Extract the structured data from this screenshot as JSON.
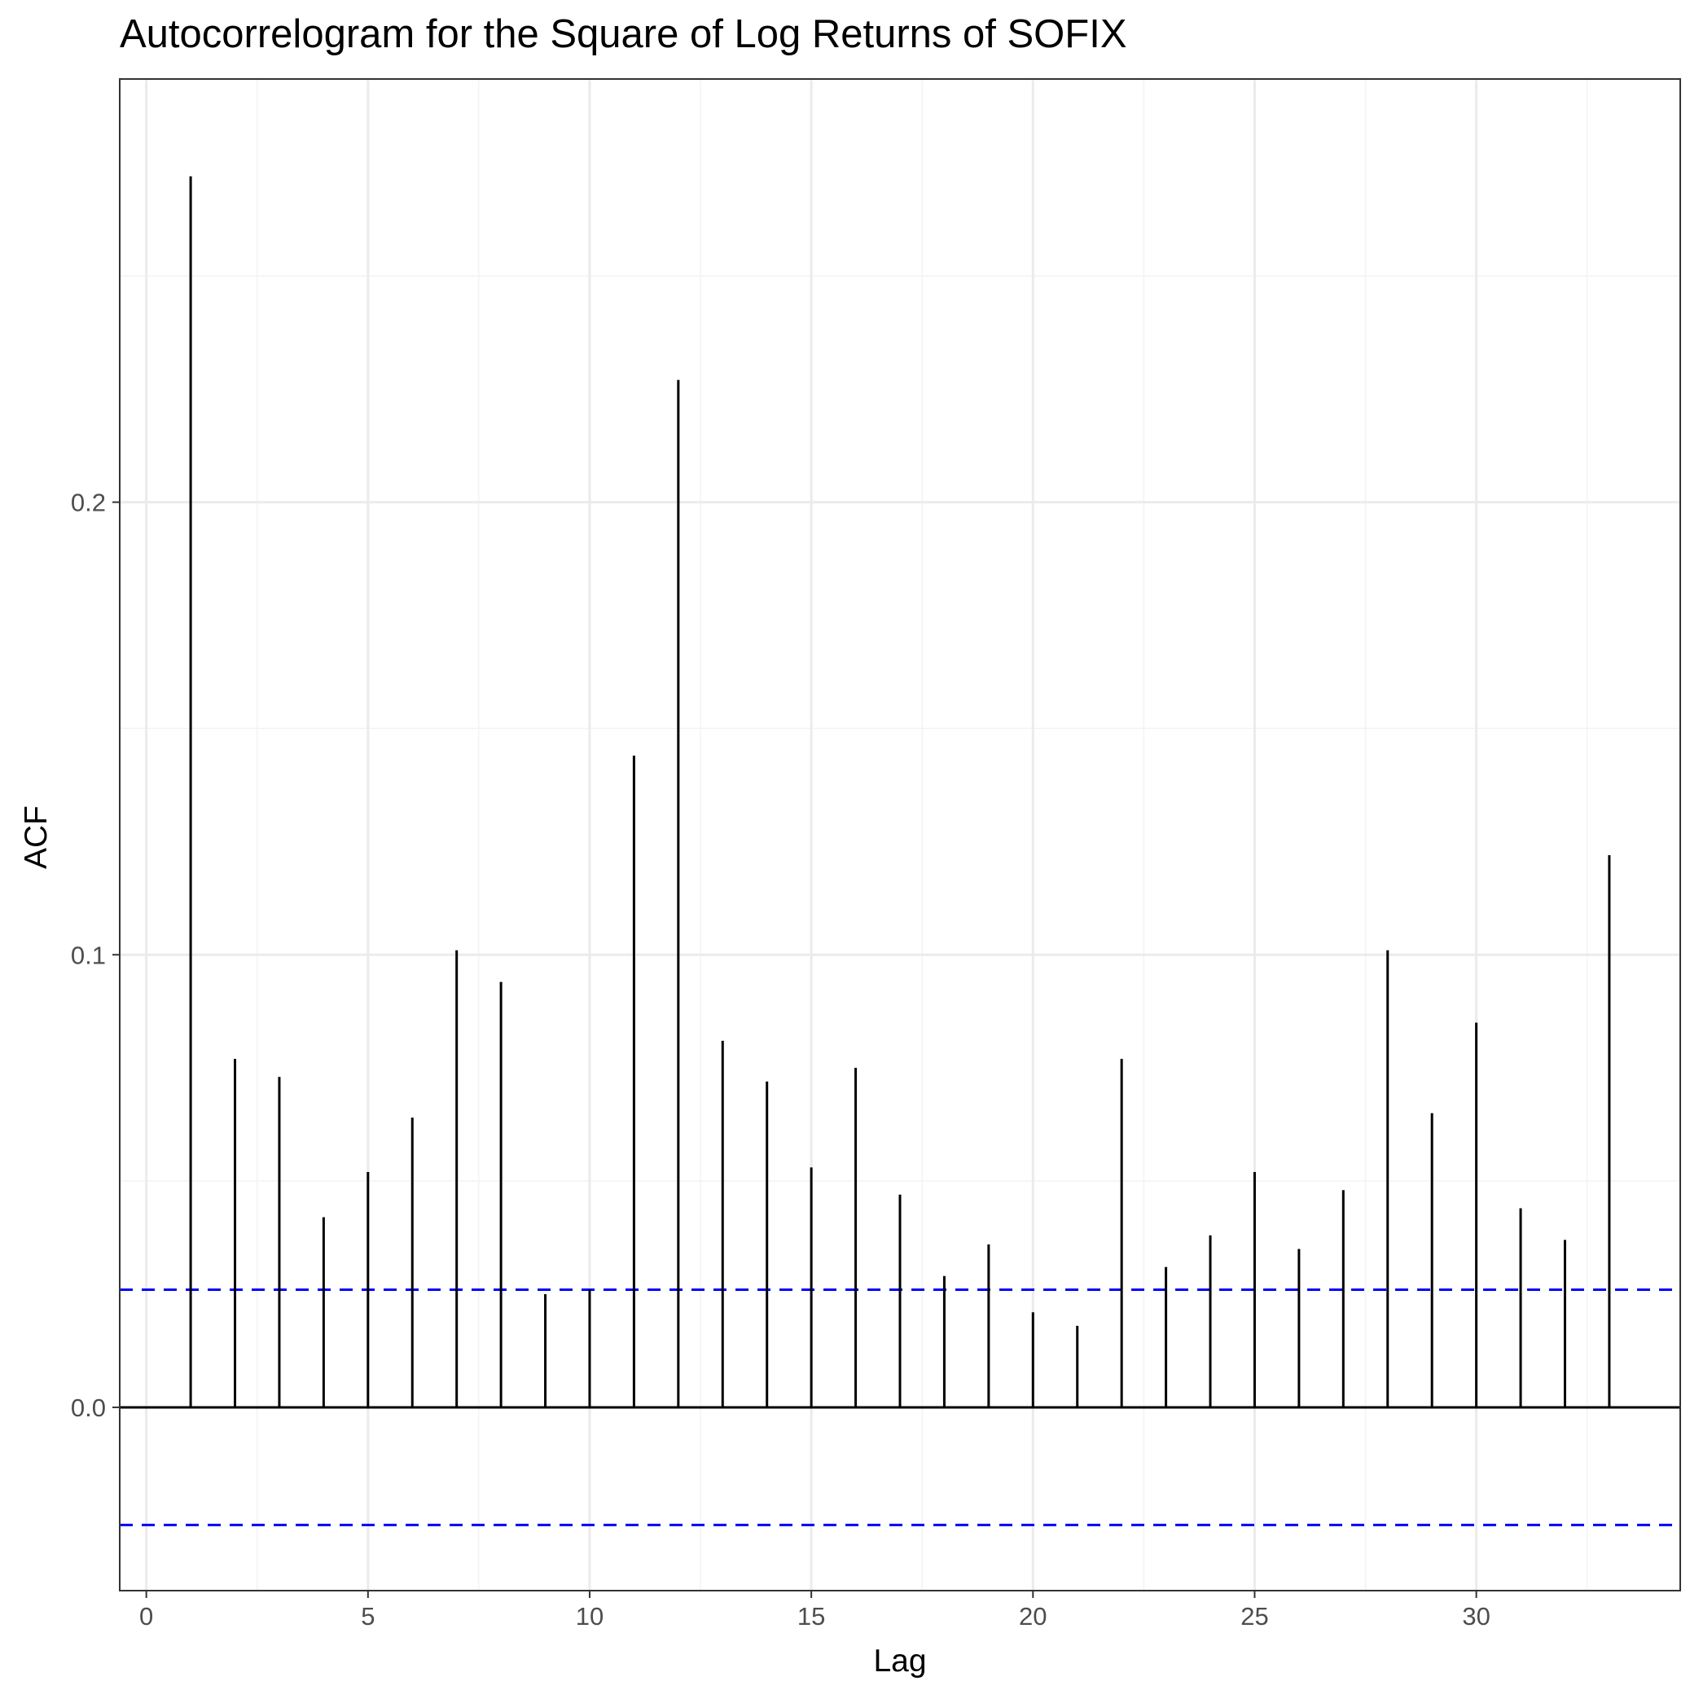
{
  "chart_data": {
    "type": "bar",
    "title": "Autocorrelogram for the Square of Log Returns of SOFIX",
    "xlabel": "Lag",
    "ylabel": "ACF",
    "xlim": [
      -0.6,
      34.6
    ],
    "ylim": [
      -0.0405,
      0.2935
    ],
    "x_ticks": [
      0,
      5,
      10,
      15,
      20,
      25,
      30
    ],
    "x_tick_labels": [
      "0",
      "5",
      "10",
      "15",
      "20",
      "25",
      "30"
    ],
    "y_ticks": [
      0.0,
      0.1,
      0.2
    ],
    "y_tick_labels": [
      "0.0",
      "0.1",
      "0.2"
    ],
    "grid": true,
    "confidence_bounds": [
      0.026,
      -0.026
    ],
    "lags": [
      1,
      2,
      3,
      4,
      5,
      6,
      7,
      8,
      9,
      10,
      11,
      12,
      13,
      14,
      15,
      16,
      17,
      18,
      19,
      20,
      21,
      22,
      23,
      24,
      25,
      26,
      27,
      28,
      29,
      30,
      31,
      32,
      33
    ],
    "values": [
      0.272,
      0.077,
      0.073,
      0.042,
      0.052,
      0.064,
      0.101,
      0.094,
      0.025,
      0.026,
      0.144,
      0.227,
      0.081,
      0.072,
      0.053,
      0.075,
      0.047,
      0.029,
      0.036,
      0.021,
      0.018,
      0.077,
      0.031,
      0.038,
      0.052,
      0.035,
      0.048,
      0.101,
      0.065,
      0.085,
      0.044,
      0.037,
      0.122
    ],
    "colors": {
      "bars": "#000000",
      "confidence": "#0000ff",
      "grid_major": "#ebebeb",
      "grid_minor": "#f3f3f3",
      "panel_border": "#333333"
    }
  }
}
